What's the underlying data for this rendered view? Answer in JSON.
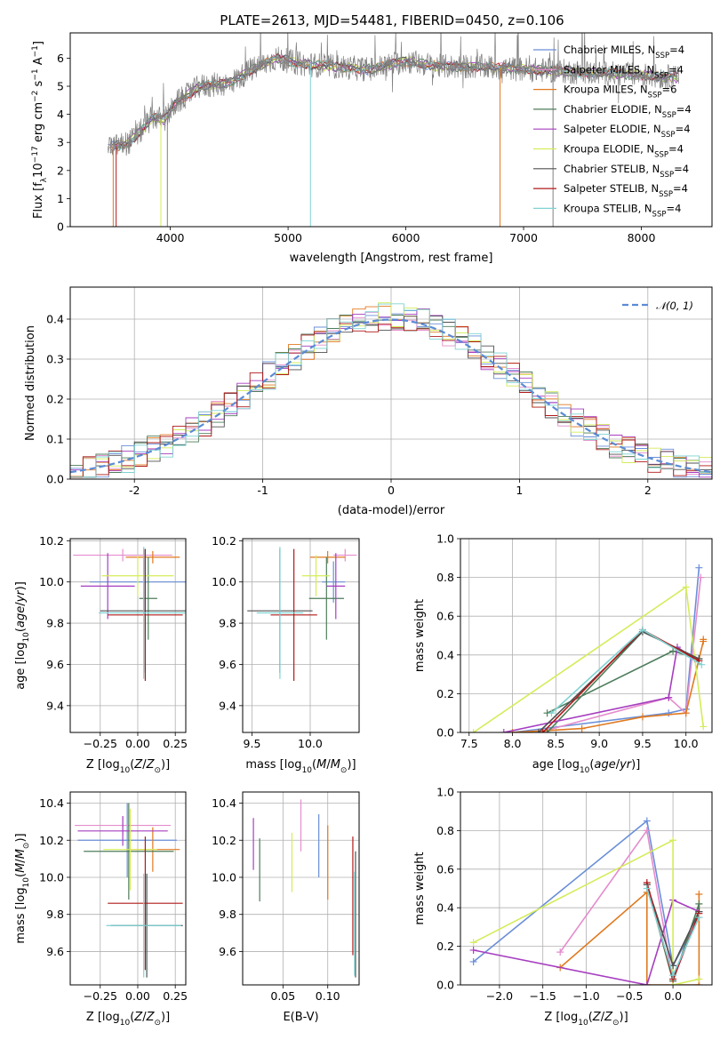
{
  "figure_title": "PLATE=2613, MJD=54481, FIBERID=0450, z=0.106",
  "colors": {
    "Chabrier MILES": "#6a8fd8",
    "Salpeter MILES": "#e48ccd",
    "Kroupa MILES": "#e07a20",
    "Chabrier ELODIE": "#4e7d5a",
    "Salpeter ELODIE": "#a63ec0",
    "Kroupa ELODIE": "#d4ec5a",
    "Chabrier STELIB": "#505050",
    "Salpeter STELIB": "#b01a1a",
    "Kroupa STELIB": "#7fd2d2",
    "gaussian": "#5b8bd6"
  },
  "legend_spectrum": [
    {
      "key": "Chabrier MILES",
      "label": "Chabrier MILES, N",
      "sub": "SSP",
      "tail": "=4"
    },
    {
      "key": "Salpeter MILES",
      "label": "Salpeter MILES, N",
      "sub": "SSP",
      "tail": "=4"
    },
    {
      "key": "Kroupa MILES",
      "label": "Kroupa MILES, N",
      "sub": "SSP",
      "tail": "=6"
    },
    {
      "key": "Chabrier ELODIE",
      "label": "Chabrier ELODIE, N",
      "sub": "SSP",
      "tail": "=4"
    },
    {
      "key": "Salpeter ELODIE",
      "label": "Salpeter ELODIE, N",
      "sub": "SSP",
      "tail": "=4"
    },
    {
      "key": "Kroupa ELODIE",
      "label": "Kroupa ELODIE, N",
      "sub": "SSP",
      "tail": "=4"
    },
    {
      "key": "Chabrier STELIB",
      "label": "Chabrier STELIB, N",
      "sub": "SSP",
      "tail": "=4"
    },
    {
      "key": "Salpeter STELIB",
      "label": "Salpeter STELIB, N",
      "sub": "SSP",
      "tail": "=4"
    },
    {
      "key": "Kroupa STELIB",
      "label": "Kroupa STELIB, N",
      "sub": "SSP",
      "tail": "=4"
    }
  ],
  "legend_hist": {
    "label": "𝒩(0, 1)"
  },
  "chart_data": [
    {
      "id": "spectrum",
      "type": "line",
      "xlabel": "wavelength [Angstrom, rest frame]",
      "ylabel": "Flux [fλ10⁻¹⁷ erg cm⁻² s⁻¹ A⁻¹]",
      "xlim": [
        3150,
        8600
      ],
      "ylim": [
        0,
        6.9
      ],
      "xticks": [
        4000,
        5000,
        6000,
        7000,
        8000
      ],
      "yticks": [
        0,
        1,
        2,
        3,
        4,
        5,
        6
      ],
      "grid": false,
      "legend_position": "right",
      "observed_anchor_points": [
        [
          3470,
          2.8
        ],
        [
          3650,
          3.0
        ],
        [
          3750,
          3.4
        ],
        [
          3850,
          3.9
        ],
        [
          3950,
          3.8
        ],
        [
          4050,
          4.4
        ],
        [
          4250,
          5.0
        ],
        [
          4500,
          5.1
        ],
        [
          4700,
          5.6
        ],
        [
          4900,
          6.0
        ],
        [
          5100,
          5.8
        ],
        [
          5400,
          5.7
        ],
        [
          5700,
          5.6
        ],
        [
          6000,
          5.9
        ],
        [
          6300,
          5.7
        ],
        [
          6600,
          5.7
        ],
        [
          7000,
          5.6
        ],
        [
          7500,
          5.5
        ],
        [
          8000,
          5.4
        ],
        [
          8320,
          5.3
        ]
      ]
    },
    {
      "id": "residuals",
      "type": "line",
      "xlabel": "(data-model)/error",
      "ylabel": "Normed distribution",
      "xlim": [
        -2.5,
        2.5
      ],
      "ylim": [
        0,
        0.48
      ],
      "xticks": [
        -2,
        -1,
        0,
        1,
        2
      ],
      "yticks": [
        0.0,
        0.1,
        0.2,
        0.3,
        0.4
      ],
      "grid": true,
      "legend_position": "upper right",
      "series": [
        {
          "name": "𝒩(0, 1)",
          "type": "gaussian",
          "mean": 0,
          "sigma": 1
        }
      ]
    },
    {
      "id": "age-vs-Z",
      "type": "scatter",
      "xlabel": "Z [log10(Z/Z⊙)]",
      "ylabel": "age [log10(age/yr)]",
      "xlim": [
        -0.45,
        0.32
      ],
      "ylim": [
        9.27,
        10.21
      ],
      "xticks": [
        -0.25,
        0.0,
        0.25
      ],
      "xticklabels": [
        "−0.25",
        "0.00",
        "0.25"
      ],
      "yticks": [
        9.4,
        9.6,
        9.8,
        10.0,
        10.2
      ],
      "grid": true,
      "series": [
        {
          "name": "Chabrier MILES",
          "x": 0.04,
          "xerr": 0.36,
          "y": 10.0,
          "yerr": 0.16
        },
        {
          "name": "Salpeter MILES",
          "x": -0.1,
          "xerr": 0.33,
          "y": 10.13,
          "yerr": 0.03
        },
        {
          "name": "Kroupa MILES",
          "x": 0.1,
          "xerr": 0.18,
          "y": 10.12,
          "yerr": 0.03
        },
        {
          "name": "Chabrier ELODIE",
          "x": 0.07,
          "xerr": 0.06,
          "y": 9.92,
          "yerr": 0.2
        },
        {
          "name": "Salpeter ELODIE",
          "x": -0.2,
          "xerr": 0.18,
          "y": 9.98,
          "yerr": 0.16
        },
        {
          "name": "Kroupa ELODIE",
          "x": 0.0,
          "xerr": 0.24,
          "y": 10.03,
          "yerr": 0.1
        },
        {
          "name": "Chabrier STELIB",
          "x": 0.05,
          "xerr": 0.3,
          "y": 9.86,
          "yerr": 0.3
        },
        {
          "name": "Salpeter STELIB",
          "x": 0.05,
          "xerr": 0.25,
          "y": 9.84,
          "yerr": 0.32
        },
        {
          "name": "Kroupa STELIB",
          "x": 0.04,
          "xerr": 0.3,
          "y": 9.85,
          "yerr": 0.32
        }
      ]
    },
    {
      "id": "age-vs-mass",
      "type": "scatter",
      "xlabel": "mass [log10(M/M⊙)]",
      "xlim": [
        9.42,
        10.42
      ],
      "ylim": [
        9.27,
        10.21
      ],
      "xticks": [
        9.5,
        10.0
      ],
      "xticklabels": [
        "9.5",
        "10.0"
      ],
      "yticks": [
        9.4,
        9.6,
        9.8,
        10.0,
        10.2
      ],
      "grid": true,
      "series": [
        {
          "name": "Chabrier MILES",
          "x": 10.2,
          "xerr": 0.1,
          "y": 10.0,
          "yerr": 0.1
        },
        {
          "name": "Salpeter MILES",
          "x": 10.3,
          "xerr": 0.1,
          "y": 10.13,
          "yerr": 0.03
        },
        {
          "name": "Kroupa MILES",
          "x": 10.15,
          "xerr": 0.15,
          "y": 10.12,
          "yerr": 0.03
        },
        {
          "name": "Chabrier ELODIE",
          "x": 10.14,
          "xerr": 0.15,
          "y": 9.92,
          "yerr": 0.2
        },
        {
          "name": "Salpeter ELODIE",
          "x": 10.22,
          "xerr": 0.08,
          "y": 9.98,
          "yerr": 0.16
        },
        {
          "name": "Kroupa ELODIE",
          "x": 10.05,
          "xerr": 0.12,
          "y": 10.03,
          "yerr": 0.1
        },
        {
          "name": "Chabrier STELIB",
          "x": 9.74,
          "xerr": 0.28,
          "y": 9.86,
          "yerr": 0.3
        },
        {
          "name": "Salpeter STELIB",
          "x": 9.86,
          "xerr": 0.2,
          "y": 9.84,
          "yerr": 0.32
        },
        {
          "name": "Kroupa STELIB",
          "x": 9.74,
          "xerr": 0.2,
          "y": 9.85,
          "yerr": 0.32
        }
      ]
    },
    {
      "id": "massweight-vs-age",
      "type": "line",
      "xlabel": "age [log10(age/yr)]",
      "ylabel": "mass weight",
      "xlim": [
        7.4,
        10.3
      ],
      "ylim": [
        0,
        1.0
      ],
      "xticks": [
        7.5,
        8.0,
        8.5,
        9.0,
        9.5,
        10.0
      ],
      "xticklabels": [
        "7.5",
        "8.0",
        "8.5",
        "9.0",
        "9.5",
        "10.0"
      ],
      "yticks": [
        0,
        0.2,
        0.4,
        0.6,
        0.8,
        1.0
      ],
      "grid": true,
      "series": [
        {
          "name": "Chabrier MILES",
          "x": [
            8.0,
            9.8,
            10.0,
            10.15
          ],
          "y": [
            0.0,
            0.1,
            0.12,
            0.85
          ]
        },
        {
          "name": "Salpeter MILES",
          "x": [
            8.3,
            9.8,
            10.0,
            10.17
          ],
          "y": [
            0.0,
            0.18,
            0.1,
            0.8
          ]
        },
        {
          "name": "Kroupa MILES",
          "x": [
            8.0,
            8.8,
            9.5,
            10.0,
            10.2,
            10.2
          ],
          "y": [
            0.0,
            0.02,
            0.08,
            0.1,
            0.47,
            0.48
          ]
        },
        {
          "name": "Chabrier ELODIE",
          "x": [
            8.4,
            9.5,
            10.15,
            9.85,
            8.4
          ],
          "y": [
            0.0,
            0.52,
            0.38,
            0.42,
            0.1
          ]
        },
        {
          "name": "Salpeter ELODIE",
          "x": [
            7.9,
            9.8,
            9.9,
            10.1
          ],
          "y": [
            0.0,
            0.18,
            0.44,
            0.38
          ]
        },
        {
          "name": "Kroupa ELODIE",
          "x": [
            7.55,
            10.0,
            10.2
          ],
          "y": [
            0.0,
            0.75,
            0.03
          ]
        },
        {
          "name": "Chabrier STELIB",
          "x": [
            8.3,
            9.5,
            10.15
          ],
          "y": [
            0.0,
            0.52,
            0.38
          ]
        },
        {
          "name": "Salpeter STELIB",
          "x": [
            8.35,
            9.5,
            10.15
          ],
          "y": [
            0.0,
            0.53,
            0.37
          ]
        },
        {
          "name": "Kroupa STELIB",
          "x": [
            8.45,
            9.5,
            10.18
          ],
          "y": [
            0.1,
            0.53,
            0.35
          ]
        }
      ]
    },
    {
      "id": "mass-vs-Z",
      "type": "scatter",
      "xlabel": "Z [log10(Z/Z⊙)]",
      "ylabel": "mass [log10(M/M⊙)]",
      "xlim": [
        -0.45,
        0.32
      ],
      "ylim": [
        9.42,
        10.46
      ],
      "xticks": [
        -0.25,
        0.0,
        0.25
      ],
      "xticklabels": [
        "−0.25",
        "0.00",
        "0.25"
      ],
      "yticks": [
        9.6,
        9.8,
        10.0,
        10.2,
        10.4
      ],
      "grid": true,
      "series": [
        {
          "name": "Chabrier MILES",
          "x": -0.07,
          "xerr": 0.33,
          "y": 10.2,
          "yerr": 0.2
        },
        {
          "name": "Salpeter MILES",
          "x": -0.1,
          "xerr": 0.32,
          "y": 10.28,
          "yerr": 0.05
        },
        {
          "name": "Kroupa MILES",
          "x": 0.1,
          "xerr": 0.18,
          "y": 10.15,
          "yerr": 0.12
        },
        {
          "name": "Chabrier ELODIE",
          "x": -0.06,
          "xerr": 0.3,
          "y": 10.14,
          "yerr": 0.26
        },
        {
          "name": "Salpeter ELODIE",
          "x": -0.1,
          "xerr": 0.3,
          "y": 10.25,
          "yerr": 0.08
        },
        {
          "name": "Kroupa ELODIE",
          "x": -0.05,
          "xerr": 0.18,
          "y": 10.15,
          "yerr": 0.22
        },
        {
          "name": "Chabrier STELIB",
          "x": 0.06,
          "xerr": 0.24,
          "y": 9.74,
          "yerr": 0.28
        },
        {
          "name": "Salpeter STELIB",
          "x": 0.05,
          "xerr": 0.25,
          "y": 9.86,
          "yerr": 0.36
        },
        {
          "name": "Kroupa STELIB",
          "x": 0.04,
          "xerr": 0.25,
          "y": 9.74,
          "yerr": 0.28
        }
      ]
    },
    {
      "id": "mass-vs-EBV",
      "type": "scatter",
      "xlabel": "E(B-V)",
      "xlim": [
        0.005,
        0.135
      ],
      "ylim": [
        9.42,
        10.46
      ],
      "xticks": [
        0.05,
        0.1
      ],
      "xticklabels": [
        "0.05",
        "0.10"
      ],
      "yticks": [
        9.6,
        9.8,
        10.0,
        10.2,
        10.4
      ],
      "grid": true,
      "series": [
        {
          "name": "Chabrier MILES",
          "x": 0.09,
          "y": 10.17,
          "yerr": 0.17
        },
        {
          "name": "Salpeter MILES",
          "x": 0.07,
          "y": 10.28,
          "yerr": 0.14
        },
        {
          "name": "Kroupa MILES",
          "x": 0.1,
          "y": 10.08,
          "yerr": 0.2
        },
        {
          "name": "Chabrier ELODIE",
          "x": 0.024,
          "y": 10.04,
          "yerr": 0.17
        },
        {
          "name": "Salpeter ELODIE",
          "x": 0.017,
          "y": 10.18,
          "yerr": 0.14
        },
        {
          "name": "Kroupa ELODIE",
          "x": 0.06,
          "y": 10.08,
          "yerr": 0.16
        },
        {
          "name": "Chabrier STELIB",
          "x": 0.131,
          "y": 9.8,
          "yerr": 0.34
        },
        {
          "name": "Salpeter STELIB",
          "x": 0.128,
          "y": 9.9,
          "yerr": 0.32
        },
        {
          "name": "Kroupa STELIB",
          "x": 0.13,
          "y": 9.75,
          "yerr": 0.28
        }
      ]
    },
    {
      "id": "massweight-vs-Z",
      "type": "line",
      "xlabel": "Z [log10(Z/Z⊙)]",
      "ylabel": "mass weight",
      "xlim": [
        -2.45,
        0.45
      ],
      "ylim": [
        0,
        1.0
      ],
      "xticks": [
        -2.0,
        -1.5,
        -1.0,
        -0.5,
        0.0
      ],
      "xticklabels": [
        "−2.0",
        "−1.5",
        "−1.0",
        "−0.5",
        "0.0"
      ],
      "yticks": [
        0,
        0.2,
        0.4,
        0.6,
        0.8,
        1.0
      ],
      "grid": true,
      "series": [
        {
          "name": "Chabrier MILES",
          "x": [
            -2.3,
            -0.3,
            0.0,
            0.3
          ],
          "y": [
            0.12,
            0.85,
            0.1,
            0.35
          ]
        },
        {
          "name": "Salpeter MILES",
          "x": [
            -1.3,
            -0.3,
            0.0,
            0.3
          ],
          "y": [
            0.17,
            0.8,
            0.02,
            0.38
          ]
        },
        {
          "name": "Kroupa MILES",
          "x": [
            -1.3,
            -0.3,
            -0.3,
            0.3,
            0.3
          ],
          "y": [
            0.09,
            0.48,
            0.0,
            0.0,
            0.47
          ]
        },
        {
          "name": "Chabrier ELODIE",
          "x": [
            -0.3,
            0.0,
            0.3,
            0.3
          ],
          "y": [
            0.52,
            0.02,
            0.42,
            0.38
          ]
        },
        {
          "name": "Salpeter ELODIE",
          "x": [
            -2.3,
            -0.3,
            0.0,
            0.3
          ],
          "y": [
            0.18,
            0.0,
            0.44,
            0.38
          ]
        },
        {
          "name": "Kroupa ELODIE",
          "x": [
            -2.3,
            0.0,
            0.0,
            0.3
          ],
          "y": [
            0.22,
            0.75,
            0.0,
            0.03
          ]
        },
        {
          "name": "Chabrier STELIB",
          "x": [
            -0.3,
            0.0,
            0.3
          ],
          "y": [
            0.52,
            0.1,
            0.38
          ]
        },
        {
          "name": "Salpeter STELIB",
          "x": [
            -0.3,
            0.0,
            0.3
          ],
          "y": [
            0.53,
            0.03,
            0.37
          ]
        },
        {
          "name": "Kroupa STELIB",
          "x": [
            -0.3,
            0.0,
            0.3
          ],
          "y": [
            0.5,
            0.05,
            0.35
          ]
        }
      ]
    }
  ]
}
